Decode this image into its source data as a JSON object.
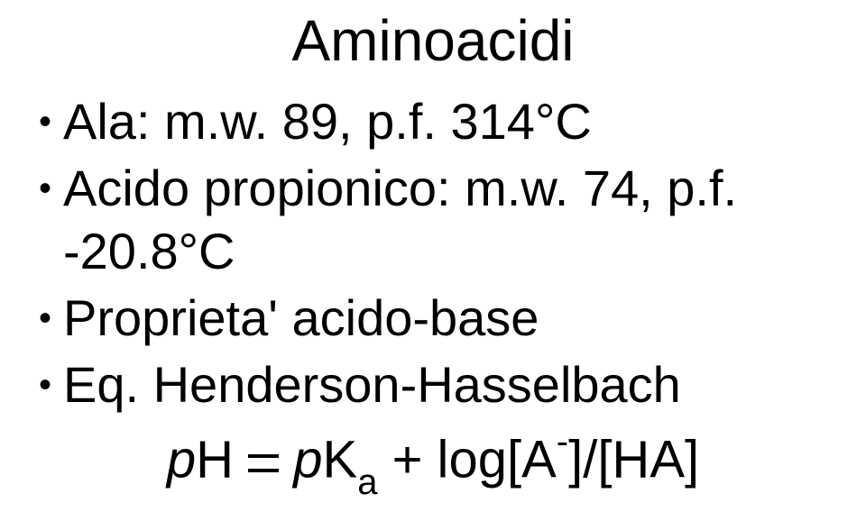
{
  "title": "Aminoacidi",
  "bullets": [
    {
      "text": "Ala: m.w. 89, p.f. 314°C"
    },
    {
      "text": "Acido propionico: m.w. 74, p.f. -20.8°C"
    },
    {
      "text": "Proprieta' acido-base"
    },
    {
      "text": "Eq. Henderson-Hasselbach"
    }
  ],
  "equation": {
    "p1": "p",
    "H": "H ",
    "p2": "p",
    "K": "K",
    "a": "a",
    "plus": " + log[A",
    "minus": "-",
    "tail": "]/[HA]"
  },
  "style": {
    "background": "#ffffff",
    "text_color": "#000000",
    "title_fontsize": 64,
    "bullet_fontsize": 56,
    "equation_fontsize": 58,
    "font_family": "Arial"
  }
}
